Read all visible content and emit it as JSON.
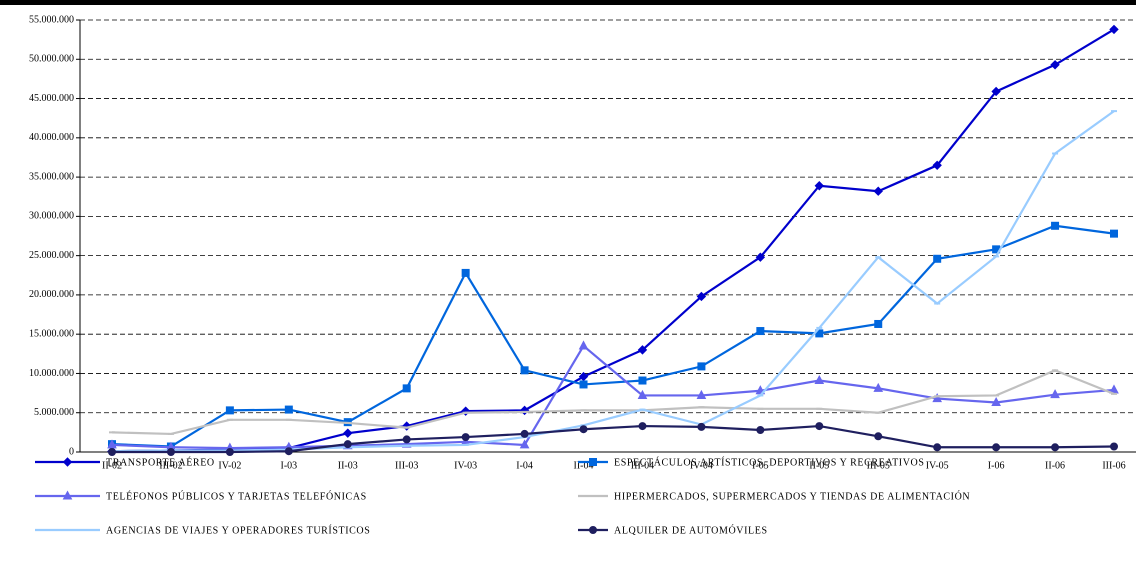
{
  "chart_data": {
    "type": "line",
    "categories": [
      "II-02",
      "III-02",
      "IV-02",
      "I-03",
      "II-03",
      "III-03",
      "IV-03",
      "I-04",
      "II-04",
      "III-04",
      "IV-04",
      "I-05",
      "II-05",
      "III-05",
      "IV-05",
      "I-06",
      "II-06",
      "III-06"
    ],
    "ylim": [
      0,
      55000000
    ],
    "yticks": [
      0,
      {
        "value": 5000000,
        "label": "5.000.000"
      },
      {
        "value": 10000000,
        "label": "10.000.000"
      },
      {
        "value": 15000000,
        "label": "15.000.000"
      },
      {
        "value": 20000000,
        "label": "20.000.000"
      },
      {
        "value": 25000000,
        "label": "25.000.000"
      },
      {
        "value": 30000000,
        "label": "30.000.000"
      },
      {
        "value": 35000000,
        "label": "35.000.000"
      },
      {
        "value": 40000000,
        "label": "40.000.000"
      },
      {
        "value": 45000000,
        "label": "45.000.000"
      },
      {
        "value": 50000000,
        "label": "50.000.000"
      },
      {
        "value": 55000000,
        "label": "55.000.000"
      }
    ],
    "grid": true,
    "series": [
      {
        "name": "TRANSPORTE AÉREO",
        "color": "#0000cc",
        "marker": "diamond",
        "values": [
          100000,
          200000,
          300000,
          500000,
          2400000,
          3300000,
          5200000,
          5300000,
          9600000,
          13000000,
          19800000,
          24800000,
          33900000,
          33200000,
          36500000,
          45900000,
          49300000,
          53800000
        ]
      },
      {
        "name": "ESPECTÁCULOS ARTÍSTICOS, DEPORTIVOS Y RECREATIVOS",
        "color": "#0066dd",
        "marker": "square",
        "values": [
          1000000,
          700000,
          5300000,
          5400000,
          3800000,
          8100000,
          22800000,
          10400000,
          8600000,
          9100000,
          10900000,
          15400000,
          15100000,
          16300000,
          24600000,
          25800000,
          28800000,
          27800000
        ]
      },
      {
        "name": "TELÉFONOS PÚBLICOS Y TARJETAS TELEFÓNICAS",
        "color": "#6666ee",
        "marker": "triangle",
        "values": [
          900000,
          600000,
          500000,
          600000,
          800000,
          1000000,
          1300000,
          900000,
          13500000,
          7200000,
          7200000,
          7800000,
          9100000,
          8100000,
          6800000,
          6300000,
          7300000,
          7900000
        ]
      },
      {
        "name": "HIPERMERCADOS, SUPERMERCADOS Y TIENDAS DE ALIMENTACIÓN",
        "color": "#c0c0c0",
        "marker": "dash",
        "values": [
          2500000,
          2300000,
          4100000,
          4100000,
          3700000,
          3100000,
          5000000,
          5100000,
          5300000,
          5300000,
          5700000,
          5500000,
          5500000,
          5000000,
          7100000,
          7200000,
          10400000,
          7400000
        ]
      },
      {
        "name": "AGENCIAS DE VIAJES Y OPERADORES TURÍSTICOS",
        "color": "#99ccff",
        "marker": "dash",
        "values": [
          100000,
          200000,
          200000,
          300000,
          600000,
          800000,
          900000,
          1900000,
          3400000,
          5400000,
          3500000,
          7200000,
          15800000,
          24800000,
          18900000,
          24900000,
          38000000,
          43400000
        ]
      },
      {
        "name": "ALQUILER DE AUTOMÓVILES",
        "color": "#1f1f5f",
        "marker": "circle",
        "values": [
          0,
          0,
          0,
          100000,
          1000000,
          1600000,
          1900000,
          2300000,
          2900000,
          3300000,
          3200000,
          2800000,
          3300000,
          2000000,
          600000,
          600000,
          600000,
          700000
        ]
      }
    ]
  }
}
